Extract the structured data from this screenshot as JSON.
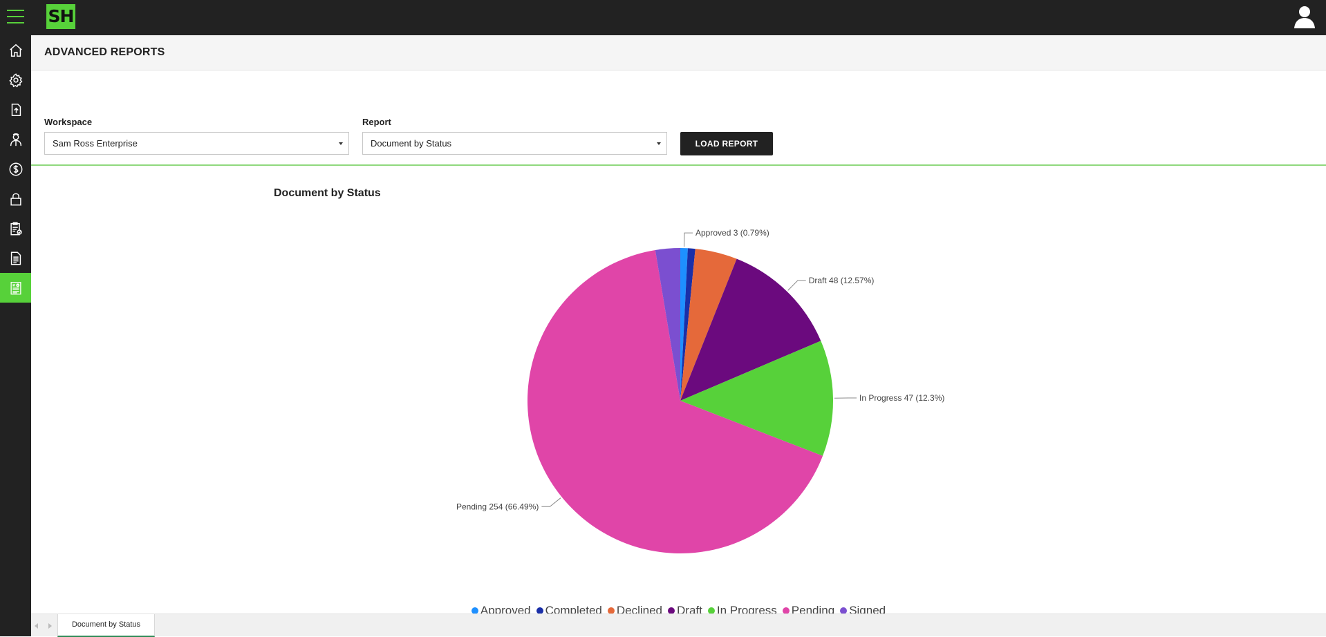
{
  "app": {
    "logo_text": "SH"
  },
  "header": {
    "title": "ADVANCED REPORTS"
  },
  "filters": {
    "workspace_label": "Workspace",
    "workspace_value": "Sam Ross Enterprise",
    "report_label": "Report",
    "report_value": "Document by Status",
    "load_button": "LOAD REPORT"
  },
  "sidebar": {
    "items": [
      {
        "icon": "home-icon"
      },
      {
        "icon": "gear-icon"
      },
      {
        "icon": "upload-icon"
      },
      {
        "icon": "user-agent-icon"
      },
      {
        "icon": "dollar-icon"
      },
      {
        "icon": "lock-icon"
      },
      {
        "icon": "clipboard-check-icon"
      },
      {
        "icon": "document-icon"
      },
      {
        "icon": "report-icon",
        "active": true
      }
    ]
  },
  "chart_data": {
    "type": "pie",
    "title": "Document by Status",
    "slices": [
      {
        "name": "Approved",
        "value": 3,
        "label": "Approved 3 (0.79%)",
        "color": "#1e90ff"
      },
      {
        "name": "Completed",
        "value": 3,
        "label": "",
        "color": "#1a2fa8"
      },
      {
        "name": "Declined",
        "value": 17,
        "label": "",
        "color": "#e5693a"
      },
      {
        "name": "Draft",
        "value": 48,
        "label": "Draft 48 (12.57%)",
        "color": "#6b0a7e"
      },
      {
        "name": "In Progress",
        "value": 47,
        "label": "In Progress 47 (12.3%)",
        "color": "#57d13a"
      },
      {
        "name": "Pending",
        "value": 254,
        "label": "Pending 254 (66.49%)",
        "color": "#e045a8"
      },
      {
        "name": "Signed",
        "value": 10,
        "label": "",
        "color": "#7b4fd0"
      }
    ],
    "legend": [
      "Approved",
      "Completed",
      "Declined",
      "Draft",
      "In Progress",
      "Pending",
      "Signed"
    ],
    "legend_position": "bottom"
  },
  "footer": {
    "sheet_tab": "Document by Status"
  }
}
